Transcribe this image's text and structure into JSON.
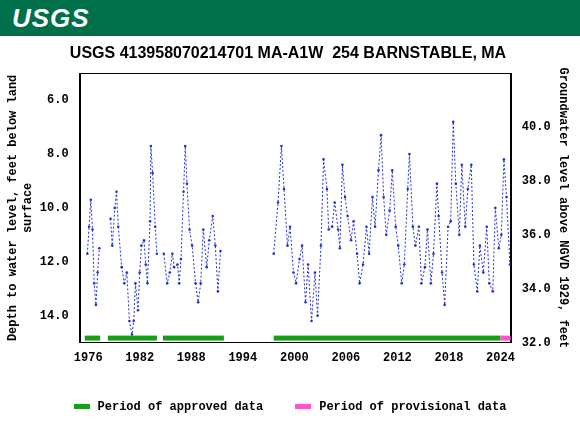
{
  "header": "USGS",
  "chart_data": {
    "type": "line",
    "title": "USGS 413958070214701 MA-A1W  254 BARNSTABLE, MA",
    "y_label": "Depth to water level, feet below land surface",
    "y2_label": "Groundwater level above NGVD 1929, feet",
    "color": "#2233cc",
    "marker": "point",
    "line_style": "dotted",
    "grid": false,
    "legend": "bottom",
    "xlim": [
      1975,
      2025.2
    ],
    "xticks": [
      1976,
      1982,
      1988,
      1994,
      2000,
      2006,
      2012,
      2018,
      2024
    ],
    "ylim": [
      15,
      5
    ],
    "yticks": [
      {
        "value": 6,
        "label": "6.0"
      },
      {
        "value": 8,
        "label": "8.0"
      },
      {
        "value": 10,
        "label": "10.0"
      },
      {
        "value": 12,
        "label": "12.0"
      },
      {
        "value": 14,
        "label": "14.0"
      }
    ],
    "y2lim": [
      32,
      42
    ],
    "y2ticks": [
      {
        "value": 32,
        "label": "32.0"
      },
      {
        "value": 34,
        "label": "34.0"
      },
      {
        "value": 36,
        "label": "36.0"
      },
      {
        "value": 38,
        "label": "38.0"
      },
      {
        "value": 40,
        "label": "40.0"
      }
    ],
    "x": [
      1975.9,
      1976.1,
      1976.3,
      1976.5,
      1976.7,
      1976.9,
      1977.1,
      1977.3,
      1977.8,
      1978.6,
      1978.8,
      1979.1,
      1979.3,
      1979.5,
      1979.9,
      1980.2,
      1980.5,
      1980.8,
      1981.1,
      1981.3,
      1981.5,
      1981.8,
      1982.0,
      1982.2,
      1982.5,
      1982.7,
      1982.9,
      1983.2,
      1983.3,
      1983.5,
      1983.8,
      1984.0,
      1984.4,
      1984.8,
      1985.2,
      1985.5,
      1985.8,
      1986.0,
      1986.4,
      1986.6,
      1986.8,
      1987.1,
      1987.3,
      1987.5,
      1987.8,
      1988.1,
      1988.5,
      1988.8,
      1989.1,
      1989.4,
      1989.8,
      1990.1,
      1990.5,
      1990.8,
      1991.1,
      1991.4,
      1994.5,
      1997.6,
      1998.1,
      1998.5,
      1998.8,
      1999.2,
      1999.5,
      1999.9,
      2000.2,
      2000.6,
      2000.9,
      2001.3,
      2001.6,
      2002.0,
      2002.4,
      2002.7,
      2003.1,
      2003.4,
      2003.8,
      2004.0,
      2004.4,
      2004.7,
      2005.1,
      2005.3,
      2005.6,
      2005.9,
      2006.2,
      2006.6,
      2006.9,
      2007.3,
      2007.6,
      2008.0,
      2008.4,
      2008.7,
      2009.1,
      2009.4,
      2009.8,
      2010.1,
      2010.4,
      2010.7,
      2011.1,
      2011.4,
      2011.8,
      2012.1,
      2012.5,
      2012.8,
      2013.2,
      2013.4,
      2013.8,
      2014.1,
      2014.5,
      2014.8,
      2015.2,
      2015.5,
      2015.9,
      2016.2,
      2016.6,
      2016.8,
      2017.2,
      2017.5,
      2017.9,
      2018.2,
      2018.5,
      2018.8,
      2019.2,
      2019.5,
      2019.9,
      2020.2,
      2020.6,
      2020.9,
      2021.3,
      2021.6,
      2022.0,
      2022.4,
      2022.7,
      2023.1,
      2023.4,
      2023.8,
      2024.1,
      2024.4,
      2024.7,
      2025.1
    ],
    "values": [
      11.7,
      10.7,
      9.7,
      10.8,
      12.8,
      13.6,
      12.4,
      11.5,
      null,
      10.4,
      11.4,
      10.0,
      9.4,
      10.7,
      12.2,
      12.8,
      12.4,
      14.2,
      14.7,
      14.2,
      12.8,
      13.8,
      12.4,
      11.4,
      11.2,
      12.1,
      12.8,
      10.5,
      7.7,
      8.7,
      10.7,
      11.7,
      null,
      11.7,
      12.8,
      12.4,
      11.7,
      12.2,
      12.1,
      12.8,
      11.9,
      9.4,
      7.7,
      9.1,
      10.8,
      11.4,
      12.8,
      13.5,
      12.8,
      10.8,
      12.2,
      11.2,
      10.3,
      11.4,
      13.1,
      11.6,
      null,
      11.7,
      9.8,
      7.7,
      9.3,
      11.4,
      10.7,
      12.4,
      12.8,
      11.9,
      11.4,
      13.5,
      12.1,
      14.2,
      12.4,
      14.0,
      11.4,
      8.2,
      9.3,
      10.8,
      10.7,
      9.8,
      10.8,
      11.5,
      8.4,
      9.6,
      10.3,
      11.2,
      10.5,
      11.7,
      12.8,
      12.1,
      10.7,
      11.7,
      9.6,
      10.7,
      8.6,
      7.3,
      9.6,
      11.0,
      10.1,
      8.6,
      10.7,
      11.4,
      12.8,
      12.1,
      9.3,
      8.0,
      10.7,
      11.4,
      10.7,
      12.8,
      12.2,
      10.8,
      12.8,
      11.7,
      9.1,
      10.3,
      12.4,
      13.6,
      10.7,
      10.5,
      6.8,
      9.1,
      11.0,
      8.4,
      10.7,
      9.3,
      8.4,
      12.1,
      13.1,
      11.4,
      12.4,
      10.7,
      12.8,
      13.1,
      10.0,
      11.5,
      11.0,
      8.2,
      9.6,
      12.1
    ],
    "periods": [
      {
        "name": "Period of approved data",
        "color": "#1a9e1a",
        "ranges": [
          [
            1975.6,
            1977.4
          ],
          [
            1978.3,
            1984.0
          ],
          [
            1984.7,
            1991.8
          ],
          [
            1997.6,
            2024.0
          ]
        ]
      },
      {
        "name": "Period of provisional data",
        "color": "#ff55cc",
        "ranges": [
          [
            2024.0,
            2025.2
          ]
        ]
      }
    ]
  }
}
